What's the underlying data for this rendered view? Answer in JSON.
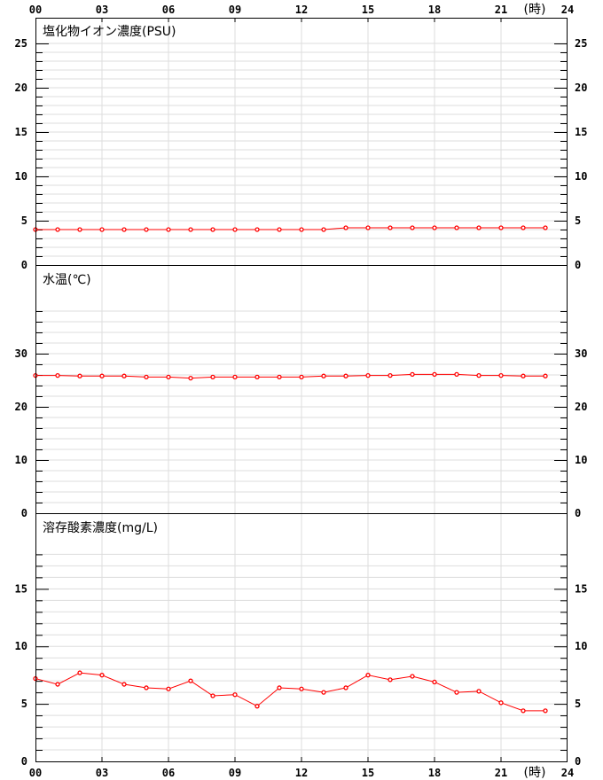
{
  "x_axis": {
    "ticks": [
      "00",
      "03",
      "06",
      "09",
      "12",
      "15",
      "18",
      "21",
      "24"
    ],
    "unit_label": "(時)"
  },
  "colors": {
    "series": "#ff0000",
    "grid": "#dddddd",
    "axis": "#000000"
  },
  "chart_data": [
    {
      "type": "line",
      "title": "塩化物イオン濃度(PSU)",
      "x": [
        0,
        1,
        2,
        3,
        4,
        5,
        6,
        7,
        8,
        9,
        10,
        11,
        12,
        13,
        14,
        15,
        16,
        17,
        18,
        19,
        20,
        21,
        22,
        23
      ],
      "values": [
        4.0,
        4.0,
        4.0,
        4.0,
        4.0,
        4.0,
        4.0,
        4.0,
        4.0,
        4.0,
        4.0,
        4.0,
        4.0,
        4.0,
        4.2,
        4.2,
        4.2,
        4.2,
        4.2,
        4.2,
        4.2,
        4.2,
        4.2,
        4.2
      ],
      "xlim": [
        0,
        24
      ],
      "ylim": [
        0,
        27.9
      ],
      "yticks": [
        0,
        5,
        10,
        15,
        20,
        25
      ],
      "minor_step": 1,
      "grid_max": 25,
      "grid": true
    },
    {
      "type": "line",
      "title": "水温(℃)",
      "x": [
        0,
        1,
        2,
        3,
        4,
        5,
        6,
        7,
        8,
        9,
        10,
        11,
        12,
        13,
        14,
        15,
        16,
        17,
        18,
        19,
        20,
        21,
        22,
        23
      ],
      "values": [
        25.9,
        25.9,
        25.8,
        25.8,
        25.8,
        25.6,
        25.6,
        25.4,
        25.6,
        25.6,
        25.6,
        25.6,
        25.6,
        25.8,
        25.8,
        25.9,
        25.9,
        26.1,
        26.1,
        26.1,
        25.9,
        25.9,
        25.8,
        25.8
      ],
      "xlim": [
        0,
        24
      ],
      "ylim": [
        0,
        46.5
      ],
      "yticks": [
        0,
        10,
        20,
        30
      ],
      "minor_step": 2,
      "grid_max": 38,
      "grid": true
    },
    {
      "type": "line",
      "title": "溶存酸素濃度(mg/L)",
      "x": [
        0,
        1,
        2,
        3,
        4,
        5,
        6,
        7,
        8,
        9,
        10,
        11,
        12,
        13,
        14,
        15,
        16,
        17,
        18,
        19,
        20,
        21,
        22,
        23
      ],
      "values": [
        7.2,
        6.7,
        7.7,
        7.5,
        6.7,
        6.4,
        6.3,
        7.0,
        5.7,
        5.8,
        4.8,
        6.4,
        6.3,
        6.0,
        6.4,
        7.5,
        7.1,
        7.4,
        6.9,
        6.0,
        6.1,
        5.1,
        4.4,
        4.4
      ],
      "xlim": [
        0,
        24
      ],
      "ylim": [
        0,
        21.5
      ],
      "yticks": [
        0,
        5,
        10,
        15
      ],
      "minor_step": 1,
      "grid_max": 18,
      "grid": true
    }
  ]
}
